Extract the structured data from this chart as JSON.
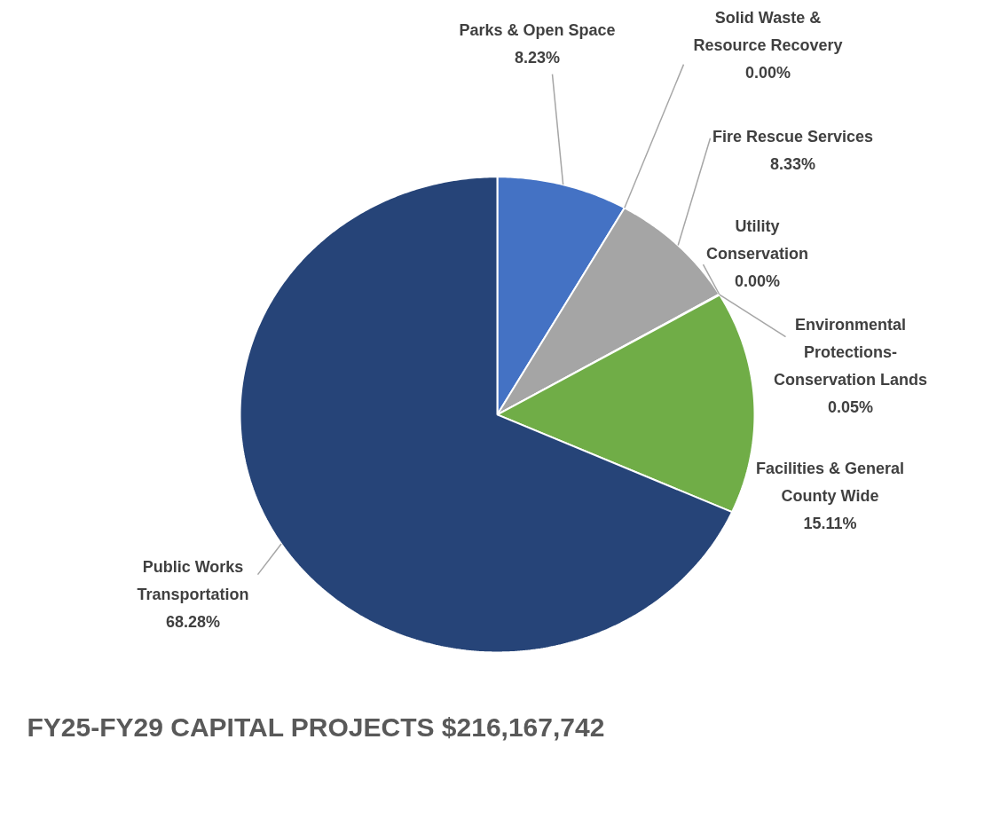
{
  "chart_data": {
    "type": "pie",
    "title": "FY25-FY29 CAPITAL PROJECTS $216,167,742",
    "categories": [
      "Parks & Open Space",
      "Solid Waste & Resource Recovery",
      "Fire Rescue Services",
      "Utility Conservation",
      "Environmental Protections-Conservation Lands",
      "Facilities & General County Wide",
      "Public Works Transportation"
    ],
    "values": [
      8.23,
      0.0,
      8.33,
      0.0,
      0.05,
      15.11,
      68.28
    ],
    "colors": [
      "#4472c4",
      "#ed7d31",
      "#a5a5a5",
      "#ffc000",
      "#5b9bd5",
      "#70ad47",
      "#264478"
    ],
    "value_labels": [
      "8.23%",
      "0.00%",
      "8.33%",
      "0.00%",
      "0.05%",
      "15.11%",
      "68.28%"
    ]
  }
}
